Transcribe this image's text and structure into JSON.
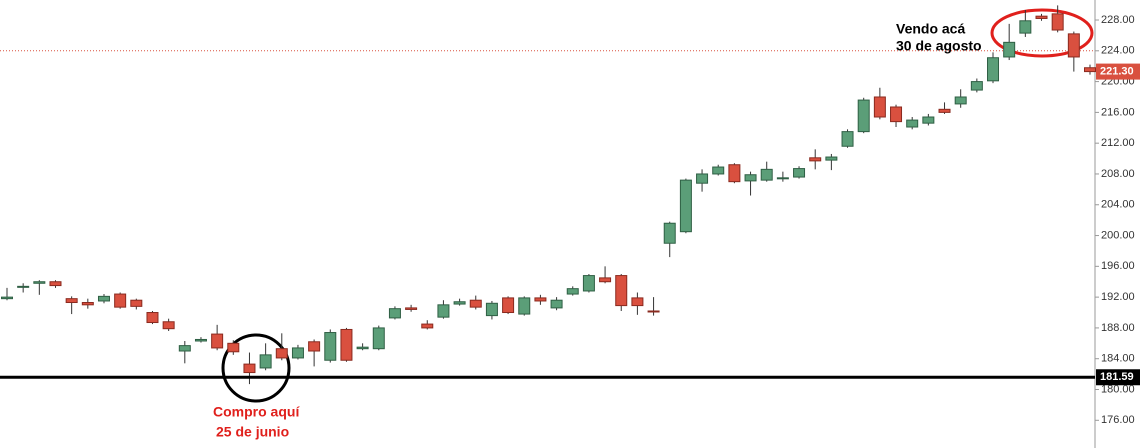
{
  "chart_data": {
    "type": "candlestick",
    "open": [
      191.8,
      193.3,
      193.8,
      194.0,
      191.8,
      191.3,
      191.5,
      192.4,
      191.6,
      190.0,
      188.8,
      185.0,
      186.3,
      187.2,
      186.0,
      183.3,
      182.8,
      185.3,
      184.1,
      186.2,
      183.8,
      187.8,
      185.3,
      185.3,
      189.3,
      190.6,
      188.5,
      189.4,
      191.1,
      191.6,
      189.6,
      191.9,
      189.8,
      191.9,
      190.6,
      192.4,
      192.8,
      194.5,
      194.8,
      191.9,
      190.2,
      199.0,
      200.5,
      206.8,
      208.0,
      209.2,
      207.1,
      207.2,
      207.4,
      207.6,
      210.1,
      209.8,
      211.6,
      213.5,
      218.0,
      216.7,
      214.1,
      214.6,
      216.4,
      217.1,
      218.9,
      220.1,
      223.2,
      226.3,
      228.5,
      228.8,
      226.2,
      221.8
    ],
    "high": [
      193.2,
      193.8,
      194.2,
      194.2,
      192.1,
      191.8,
      192.4,
      192.6,
      191.8,
      190.2,
      189.2,
      186.3,
      186.8,
      188.4,
      186.4,
      184.8,
      186.0,
      187.3,
      185.8,
      186.5,
      187.8,
      188.0,
      186.0,
      188.3,
      190.8,
      191.0,
      189.0,
      191.6,
      191.8,
      192.2,
      191.5,
      192.1,
      192.1,
      192.3,
      192.0,
      193.4,
      195.0,
      196.0,
      195.0,
      192.6,
      192.0,
      201.8,
      207.4,
      208.6,
      209.2,
      209.4,
      208.3,
      209.6,
      208.3,
      209.0,
      211.2,
      210.6,
      213.8,
      217.9,
      219.2,
      217.0,
      215.4,
      215.8,
      217.3,
      219.0,
      220.4,
      223.8,
      227.5,
      229.3,
      228.8,
      229.9,
      226.5,
      222.2
    ],
    "low": [
      191.6,
      192.6,
      192.3,
      193.2,
      189.8,
      190.5,
      191.2,
      190.5,
      190.4,
      188.5,
      187.6,
      183.4,
      186.1,
      185.1,
      184.5,
      180.7,
      182.5,
      183.8,
      183.9,
      183.0,
      183.5,
      183.6,
      185.1,
      185.1,
      189.1,
      190.1,
      187.8,
      189.2,
      190.9,
      190.4,
      189.1,
      189.8,
      189.6,
      191.0,
      190.3,
      192.2,
      192.6,
      193.8,
      190.2,
      189.7,
      189.6,
      197.2,
      200.3,
      205.7,
      207.8,
      206.8,
      205.2,
      207.0,
      207.0,
      207.4,
      208.6,
      208.5,
      211.4,
      213.3,
      215.1,
      214.1,
      213.8,
      214.3,
      215.8,
      216.6,
      218.6,
      219.8,
      222.8,
      225.8,
      227.9,
      226.4,
      221.3,
      220.9
    ],
    "close": [
      192.0,
      193.4,
      194.0,
      193.5,
      191.3,
      191.0,
      192.1,
      190.7,
      190.8,
      188.7,
      187.9,
      185.7,
      186.5,
      185.4,
      184.9,
      182.2,
      184.5,
      184.1,
      185.4,
      185.0,
      187.4,
      183.8,
      185.5,
      188.0,
      190.5,
      190.4,
      188.0,
      191.0,
      191.4,
      190.7,
      191.2,
      190.0,
      191.9,
      191.5,
      191.6,
      193.1,
      194.8,
      194.0,
      190.9,
      190.9,
      190.1,
      201.6,
      207.2,
      208.0,
      208.9,
      207.0,
      207.9,
      208.6,
      207.5,
      208.7,
      209.7,
      210.2,
      213.5,
      217.6,
      215.4,
      214.8,
      215.0,
      215.4,
      216.0,
      218.0,
      220.0,
      223.1,
      225.1,
      227.9,
      228.2,
      226.7,
      223.2,
      221.3
    ],
    "up_color": "#5b9e78",
    "down_color": "#d9503f",
    "ylim": [
      172.4,
      230.6
    ],
    "yticks": [
      {
        "value": 176,
        "label": "176.00"
      },
      {
        "value": 180,
        "label": "180.00"
      },
      {
        "value": 184,
        "label": "184.00"
      },
      {
        "value": 188,
        "label": "188.00"
      },
      {
        "value": 192,
        "label": "192.00"
      },
      {
        "value": 196,
        "label": "196.00"
      },
      {
        "value": 200,
        "label": "200.00"
      },
      {
        "value": 204,
        "label": "204.00"
      },
      {
        "value": 208,
        "label": "208.00"
      },
      {
        "value": 212,
        "label": "212.00"
      },
      {
        "value": 216,
        "label": "216.00"
      },
      {
        "value": 220,
        "label": "220.00"
      },
      {
        "value": 224,
        "label": "224.00"
      },
      {
        "value": 228,
        "label": "228.00"
      }
    ],
    "support_line": {
      "value": 181.59,
      "color": "#000000"
    },
    "resistance_line": {
      "value": 224.0,
      "color": "#d9503f"
    },
    "last_price": {
      "value": 221.3,
      "label": "221.30"
    },
    "annotations": {
      "buy": [
        "Compro aquí",
        "25 de junio"
      ],
      "sell": [
        "Vendo acá",
        "30 de agosto"
      ]
    }
  }
}
